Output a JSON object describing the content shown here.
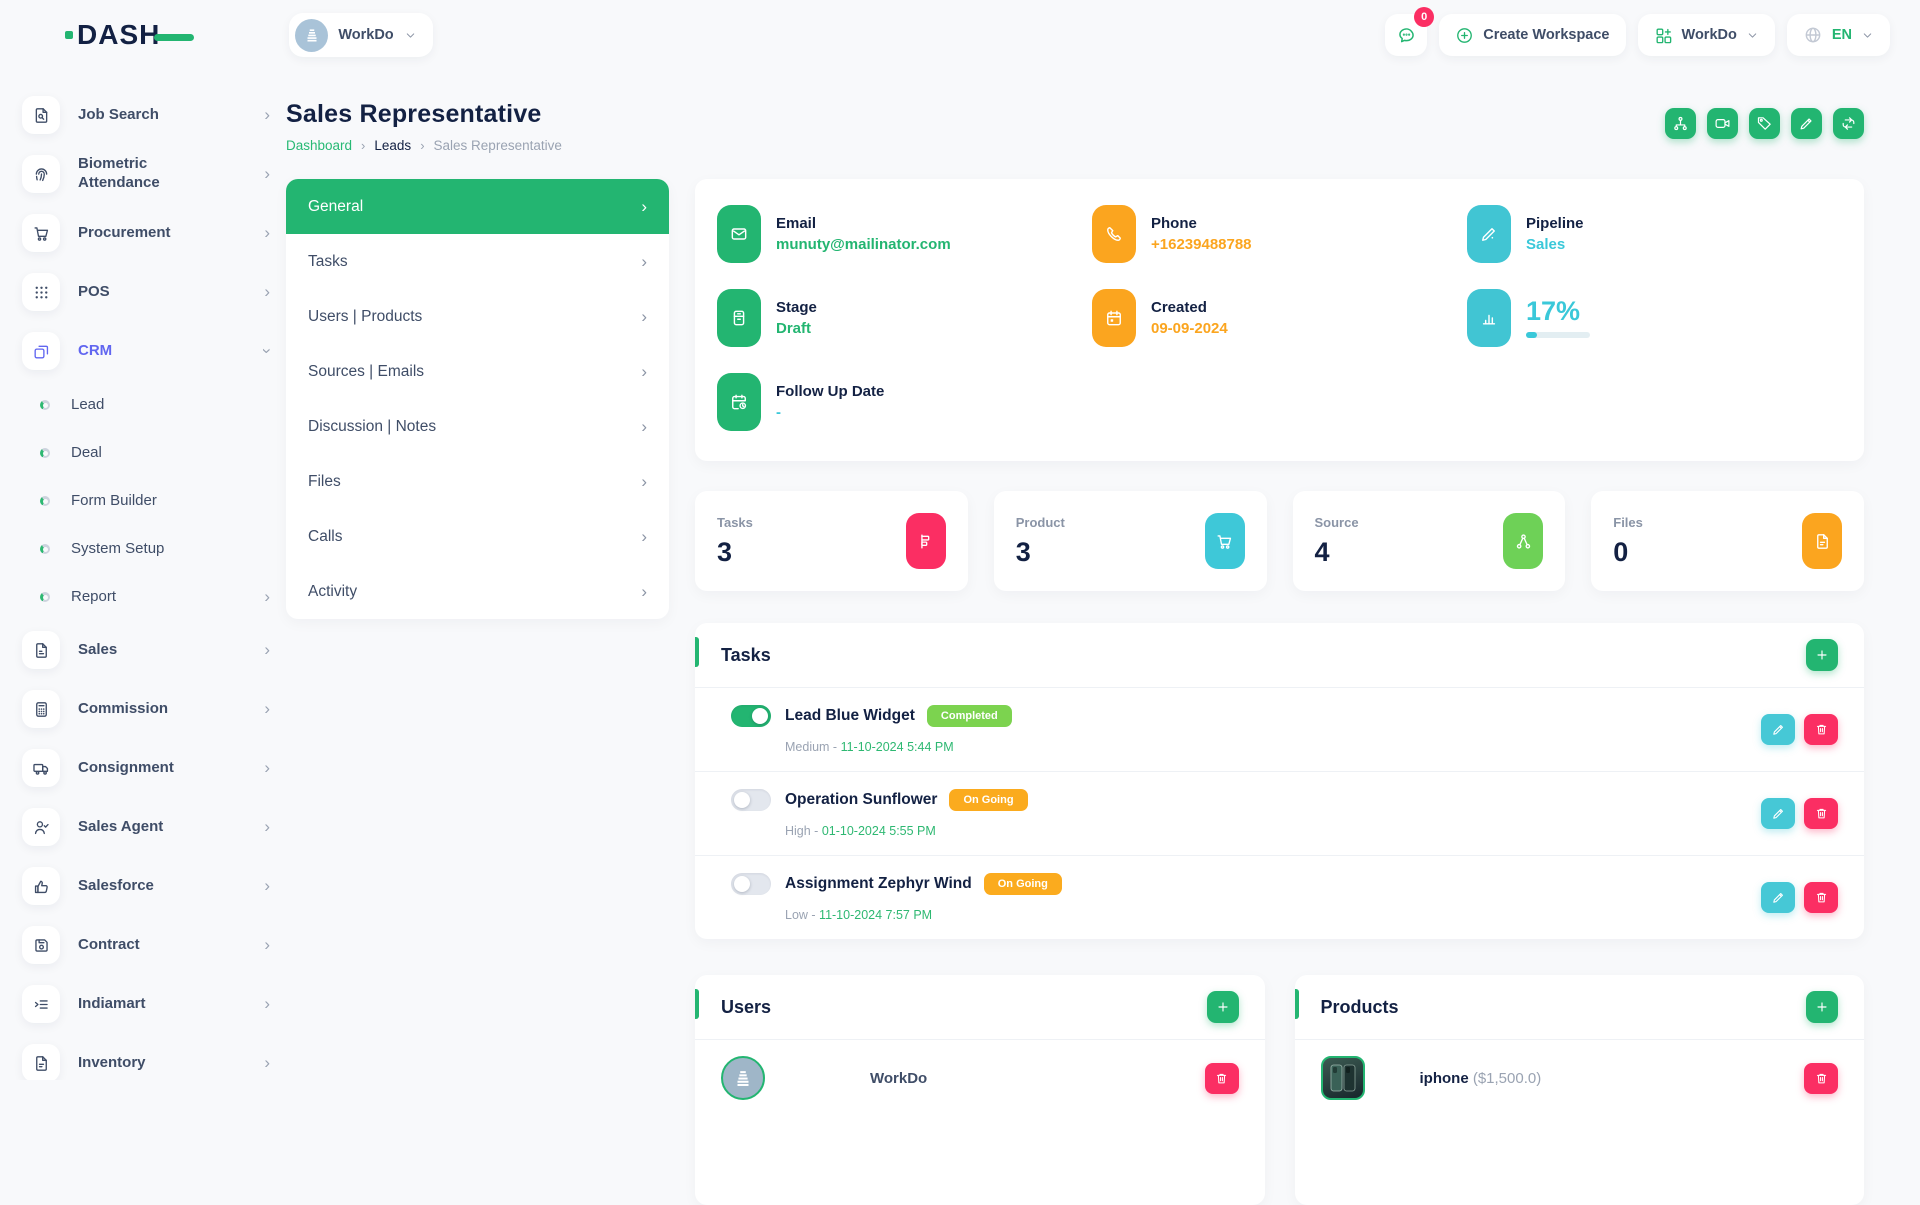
{
  "header": {
    "logo_text": "DASH",
    "workspace_current": "WorkDo",
    "chat_badge": "0",
    "create_workspace_label": "Create Workspace",
    "workspace_menu_label": "WorkDo",
    "language": "EN"
  },
  "sidebar": {
    "items": [
      {
        "label": "Job Search"
      },
      {
        "label": "Biometric Attendance"
      },
      {
        "label": "Procurement"
      },
      {
        "label": "POS"
      },
      {
        "label": "CRM",
        "active": true
      },
      {
        "label": "Lead",
        "type": "sub"
      },
      {
        "label": "Deal",
        "type": "sub"
      },
      {
        "label": "Form Builder",
        "type": "sub"
      },
      {
        "label": "System Setup",
        "type": "sub"
      },
      {
        "label": "Report",
        "type": "sub"
      },
      {
        "label": "Sales"
      },
      {
        "label": "Commission"
      },
      {
        "label": "Consignment"
      },
      {
        "label": "Sales Agent"
      },
      {
        "label": "Salesforce"
      },
      {
        "label": "Contract"
      },
      {
        "label": "Indiamart"
      },
      {
        "label": "Inventory"
      }
    ]
  },
  "page": {
    "title": "Sales Representative",
    "breadcrumb": [
      "Dashboard",
      "Leads",
      "Sales Representative"
    ]
  },
  "lead_menu": {
    "items": [
      {
        "label": "General",
        "active": true
      },
      {
        "label": "Tasks"
      },
      {
        "label": "Users | Products"
      },
      {
        "label": "Sources | Emails"
      },
      {
        "label": "Discussion | Notes"
      },
      {
        "label": "Files"
      },
      {
        "label": "Calls"
      },
      {
        "label": "Activity"
      }
    ]
  },
  "info": {
    "email": {
      "label": "Email",
      "value": "munuty@mailinator.com"
    },
    "phone": {
      "label": "Phone",
      "value": "+16239488788"
    },
    "pipeline": {
      "label": "Pipeline",
      "value": "Sales"
    },
    "stage": {
      "label": "Stage",
      "value": "Draft"
    },
    "created": {
      "label": "Created",
      "value": "09-09-2024"
    },
    "progress": {
      "value": "17%",
      "percent": 17
    },
    "follow_up": {
      "label": "Follow Up Date",
      "value": "-"
    }
  },
  "stats": [
    {
      "label": "Tasks",
      "value": "3",
      "color": "#fb2e63"
    },
    {
      "label": "Product",
      "value": "3",
      "color": "#3ec8d8"
    },
    {
      "label": "Source",
      "value": "4",
      "color": "#6ed157"
    },
    {
      "label": "Files",
      "value": "0",
      "color": "#fba51f"
    }
  ],
  "tasks_section": {
    "title": "Tasks",
    "items": [
      {
        "name": "Lead Blue Widget",
        "status": "Completed",
        "priority": "Medium - ",
        "datetime": "11-10-2024 5:44 PM",
        "done": true
      },
      {
        "name": "Operation Sunflower",
        "status": "On Going",
        "priority": "High - ",
        "datetime": "01-10-2024 5:55 PM",
        "done": false
      },
      {
        "name": "Assignment Zephyr Wind",
        "status": "On Going",
        "priority": "Low - ",
        "datetime": "11-10-2024 7:57 PM",
        "done": false
      }
    ]
  },
  "users_section": {
    "title": "Users",
    "rows": [
      {
        "name": "WorkDo"
      }
    ]
  },
  "products_section": {
    "title": "Products",
    "rows": [
      {
        "name": "iphone ",
        "price": "($1,500.0)"
      }
    ]
  },
  "colors": {
    "primary_green": "#23b571",
    "lime_badge": "#7cd34f",
    "orange": "#fba51f",
    "pink": "#fb2e63",
    "teal": "#41c5d3",
    "source_green": "#6ed157",
    "navy": "#132143",
    "crm_purple": "#6166f0"
  }
}
